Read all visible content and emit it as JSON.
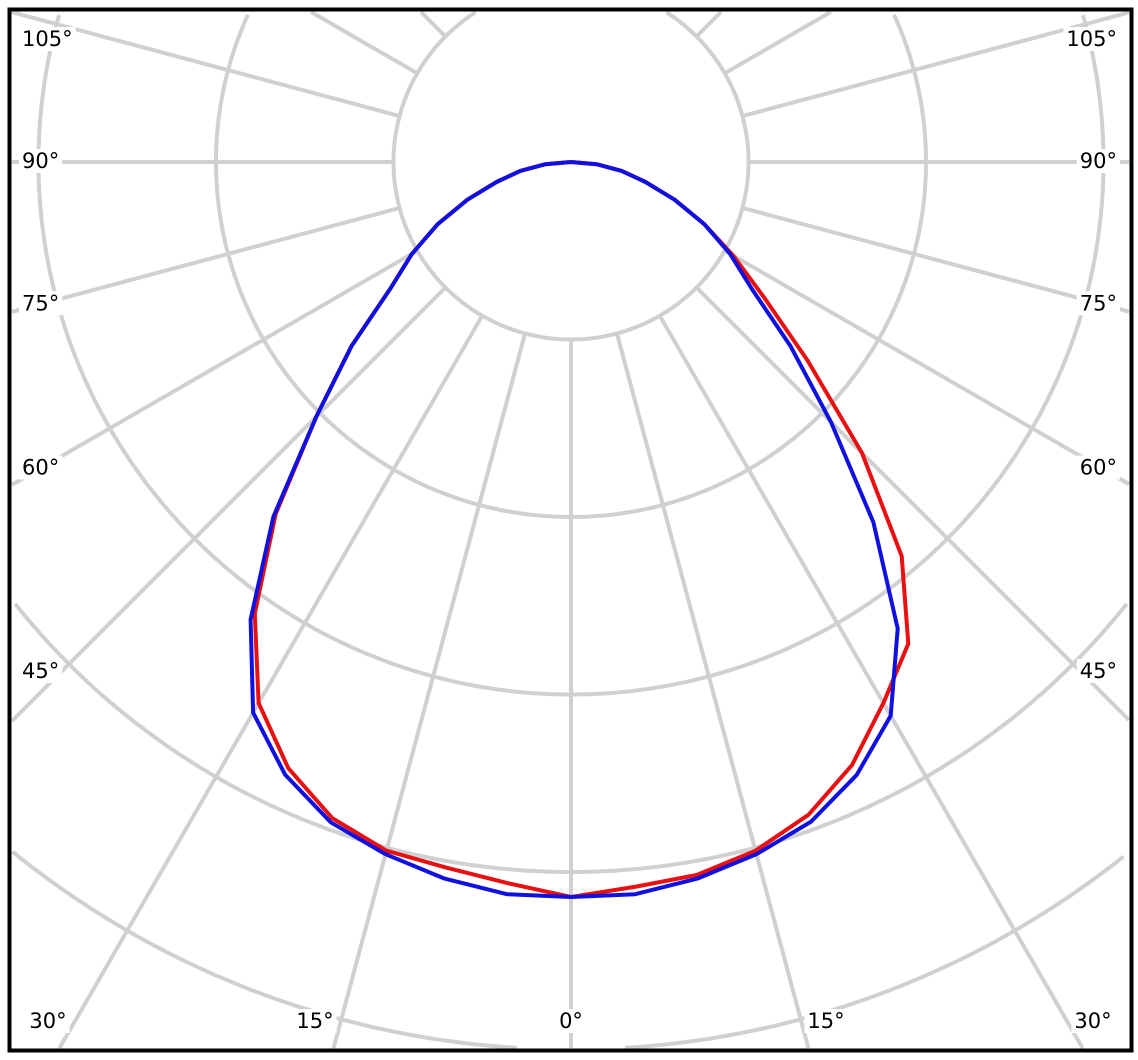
{
  "chart_data": {
    "type": "polar-line",
    "angle_labels_left": [
      "105°",
      "90°",
      "75°",
      "60°",
      "45°"
    ],
    "angle_labels_right": [
      "105°",
      "90°",
      "75°",
      "60°",
      "45°"
    ],
    "angle_labels_bottom": [
      "30°",
      "15°",
      "0°",
      "15°",
      "30°"
    ],
    "angle_label_values_side": [
      105,
      90,
      75,
      60,
      45
    ],
    "angle_label_values_bottom": [
      -30,
      -15,
      0,
      15,
      30
    ],
    "radial_unit": "relative intensity (no radial labels printed)",
    "grid": true,
    "spoke_step_deg": 15,
    "angles": [
      -90,
      -85,
      -80,
      -75,
      -70,
      -65,
      -60,
      -55,
      -50,
      -45,
      -40,
      -35,
      -30,
      -25,
      -20,
      -15,
      -10,
      -5,
      0,
      5,
      10,
      15,
      20,
      25,
      30,
      35,
      40,
      45,
      50,
      55,
      60,
      65,
      70,
      75,
      80,
      85,
      90
    ],
    "series": [
      {
        "color": "#e81010",
        "values": [
          0,
          0.035,
          0.07,
          0.105,
          0.15,
          0.2,
          0.25,
          0.3,
          0.39,
          0.49,
          0.625,
          0.75,
          0.85,
          0.91,
          0.95,
          0.97,
          0.975,
          0.985,
          1.0,
          0.99,
          0.985,
          0.97,
          0.945,
          0.905,
          0.85,
          0.8,
          0.7,
          0.56,
          0.42,
          0.32,
          0.255,
          0.2,
          0.15,
          0.105,
          0.07,
          0.035,
          0
        ]
      },
      {
        "color": "#1010e0",
        "values": [
          0,
          0.035,
          0.07,
          0.105,
          0.15,
          0.2,
          0.25,
          0.3,
          0.39,
          0.49,
          0.63,
          0.76,
          0.865,
          0.92,
          0.956,
          0.975,
          0.99,
          1.0,
          1.0,
          1.0,
          0.99,
          0.975,
          0.955,
          0.92,
          0.87,
          0.775,
          0.64,
          0.5,
          0.39,
          0.3,
          0.25,
          0.2,
          0.15,
          0.105,
          0.07,
          0.035,
          0
        ]
      }
    ],
    "grid_color": "#d0d0d0"
  }
}
